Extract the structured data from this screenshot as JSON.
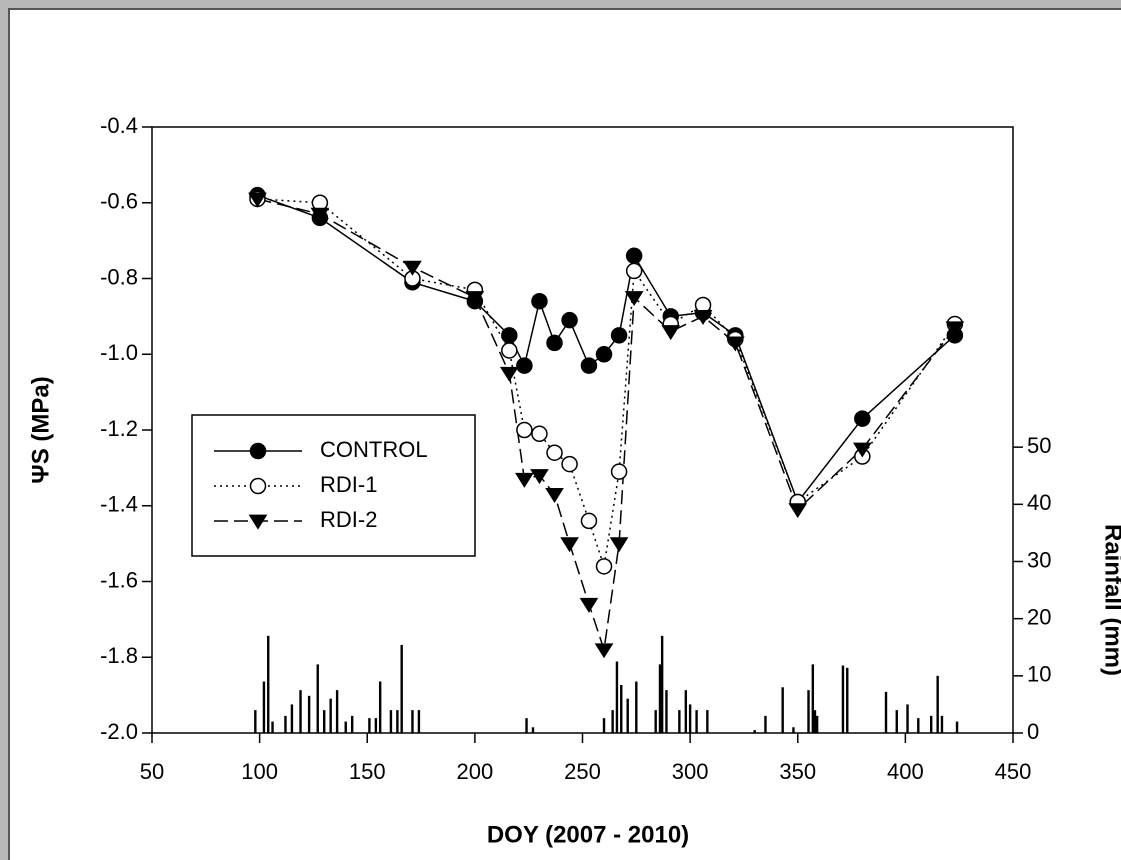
{
  "chart_data": {
    "type": "line",
    "xlabel": "DOY (2007 - 2010)",
    "ylabel": "ΨS (MPa)",
    "y2label": "Rainfall (mm)",
    "xlim": [
      50,
      450
    ],
    "xticks": [
      50,
      100,
      150,
      200,
      250,
      300,
      350,
      400,
      450
    ],
    "ylim": [
      -2.0,
      -0.4
    ],
    "yticks": [
      -0.4,
      -0.6,
      -0.8,
      {
        "value": -1.0,
        "label": "-1.0"
      },
      -1.2,
      -1.4,
      -1.6,
      -1.8,
      {
        "value": -2.0,
        "label": "-2.0"
      }
    ],
    "y2lim": [
      0,
      106
    ],
    "y2ticks": [
      0,
      10,
      20,
      30,
      40,
      50
    ],
    "legend": "left",
    "x": [
      99,
      128,
      171,
      200,
      216,
      223,
      230,
      237,
      244,
      253,
      260,
      267,
      274,
      291,
      306,
      321,
      350,
      380,
      423
    ],
    "series": [
      {
        "name": "CONTROL",
        "color": "#000000",
        "marker": "circle",
        "filled": true,
        "linestyle": "solid",
        "values": [
          -0.58,
          -0.64,
          -0.81,
          -0.86,
          -0.95,
          -1.03,
          -0.86,
          -0.97,
          -0.91,
          -1.03,
          -1.0,
          -0.95,
          -0.74,
          -0.9,
          -0.89,
          -0.95,
          -1.39,
          -1.17,
          -0.95
        ]
      },
      {
        "name": "RDI-1",
        "color": "#000000",
        "marker": "circle",
        "filled": false,
        "linestyle": "dotted",
        "values": [
          -0.59,
          -0.6,
          -0.8,
          -0.83,
          -0.99,
          -1.2,
          -1.21,
          -1.26,
          -1.29,
          -1.44,
          -1.56,
          -1.31,
          -0.78,
          -0.92,
          -0.87,
          -0.96,
          -1.39,
          -1.27,
          -0.92
        ]
      },
      {
        "name": "RDI-2",
        "color": "#000000",
        "marker": "triangle-down",
        "filled": true,
        "linestyle": "dashed",
        "values": [
          -0.59,
          -0.63,
          -0.77,
          -0.85,
          -1.05,
          -1.33,
          -1.32,
          -1.37,
          -1.5,
          -1.66,
          -1.78,
          -1.5,
          -0.85,
          -0.94,
          -0.9,
          -0.97,
          -1.41,
          -1.25,
          -0.93
        ]
      }
    ],
    "rainfall": {
      "type": "bar",
      "axis": "y2",
      "color": "#000000",
      "x": [
        98,
        102,
        104,
        106,
        112,
        115,
        119,
        123,
        127,
        130,
        133,
        136,
        140,
        143,
        151,
        154,
        156,
        161,
        164,
        166,
        171,
        174,
        224,
        227,
        260,
        264,
        266,
        268,
        271,
        275,
        284,
        286,
        287,
        289,
        295,
        298,
        300,
        303,
        308,
        330,
        335,
        343,
        348,
        355,
        357,
        358,
        359,
        371,
        373,
        391,
        396,
        401,
        406,
        412,
        415,
        417,
        424
      ],
      "values": [
        4,
        9,
        17,
        2,
        3,
        5,
        7.5,
        6.5,
        12,
        4,
        6,
        7.5,
        2,
        3,
        2.6,
        2.6,
        9,
        4,
        4,
        15.4,
        4,
        4,
        2.6,
        1,
        2.6,
        4,
        12.5,
        8.4,
        6,
        9,
        4,
        12,
        17,
        7.5,
        4,
        7.5,
        5,
        4,
        4,
        0.5,
        3,
        8,
        1,
        7.5,
        12,
        4,
        3,
        11.8,
        11.4,
        7.2,
        4,
        5,
        2.6,
        3,
        10,
        3,
        2
      ]
    }
  }
}
